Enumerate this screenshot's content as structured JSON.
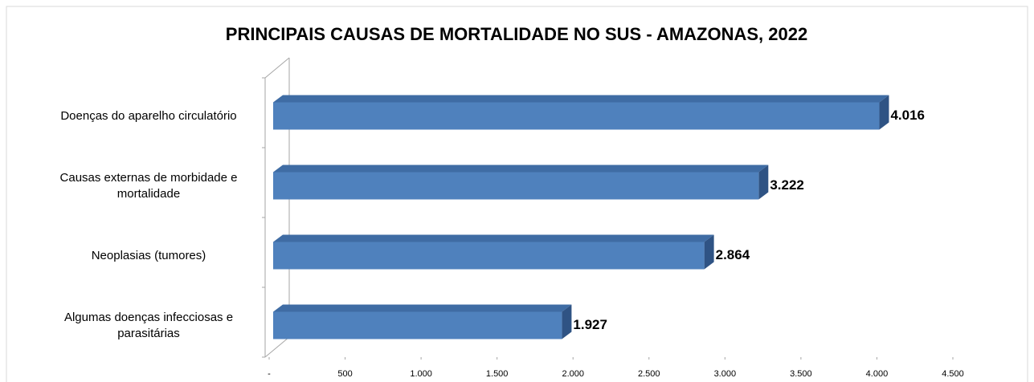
{
  "chart_data": {
    "type": "bar3d_horizontal",
    "title": "PRINCIPAIS CAUSAS DE MORTALIDADE NO SUS - AMAZONAS, 2022",
    "categories": [
      "Doenças do aparelho circulatório",
      "Causas externas de morbidade e mortalidade",
      "Neoplasias (tumores)",
      "Algumas doenças infecciosas e parasitárias"
    ],
    "values": [
      4016,
      3222,
      2864,
      1927
    ],
    "value_labels": [
      "4.016",
      "3.222",
      "2.864",
      "1.927"
    ],
    "color": "#4f81bd",
    "xlim": [
      0,
      4500
    ],
    "xticks": [
      {
        "value": 0,
        "label": "-"
      },
      500,
      {
        "value": 1000,
        "label": "1.000"
      },
      {
        "value": 1500,
        "label": "1.500"
      },
      {
        "value": 2000,
        "label": "2.000"
      },
      {
        "value": 2500,
        "label": "2.500"
      },
      {
        "value": 3000,
        "label": "3.000"
      },
      {
        "value": 3500,
        "label": "3.500"
      },
      {
        "value": 4000,
        "label": "4.000"
      },
      {
        "value": 4500,
        "label": "4.500"
      }
    ]
  }
}
